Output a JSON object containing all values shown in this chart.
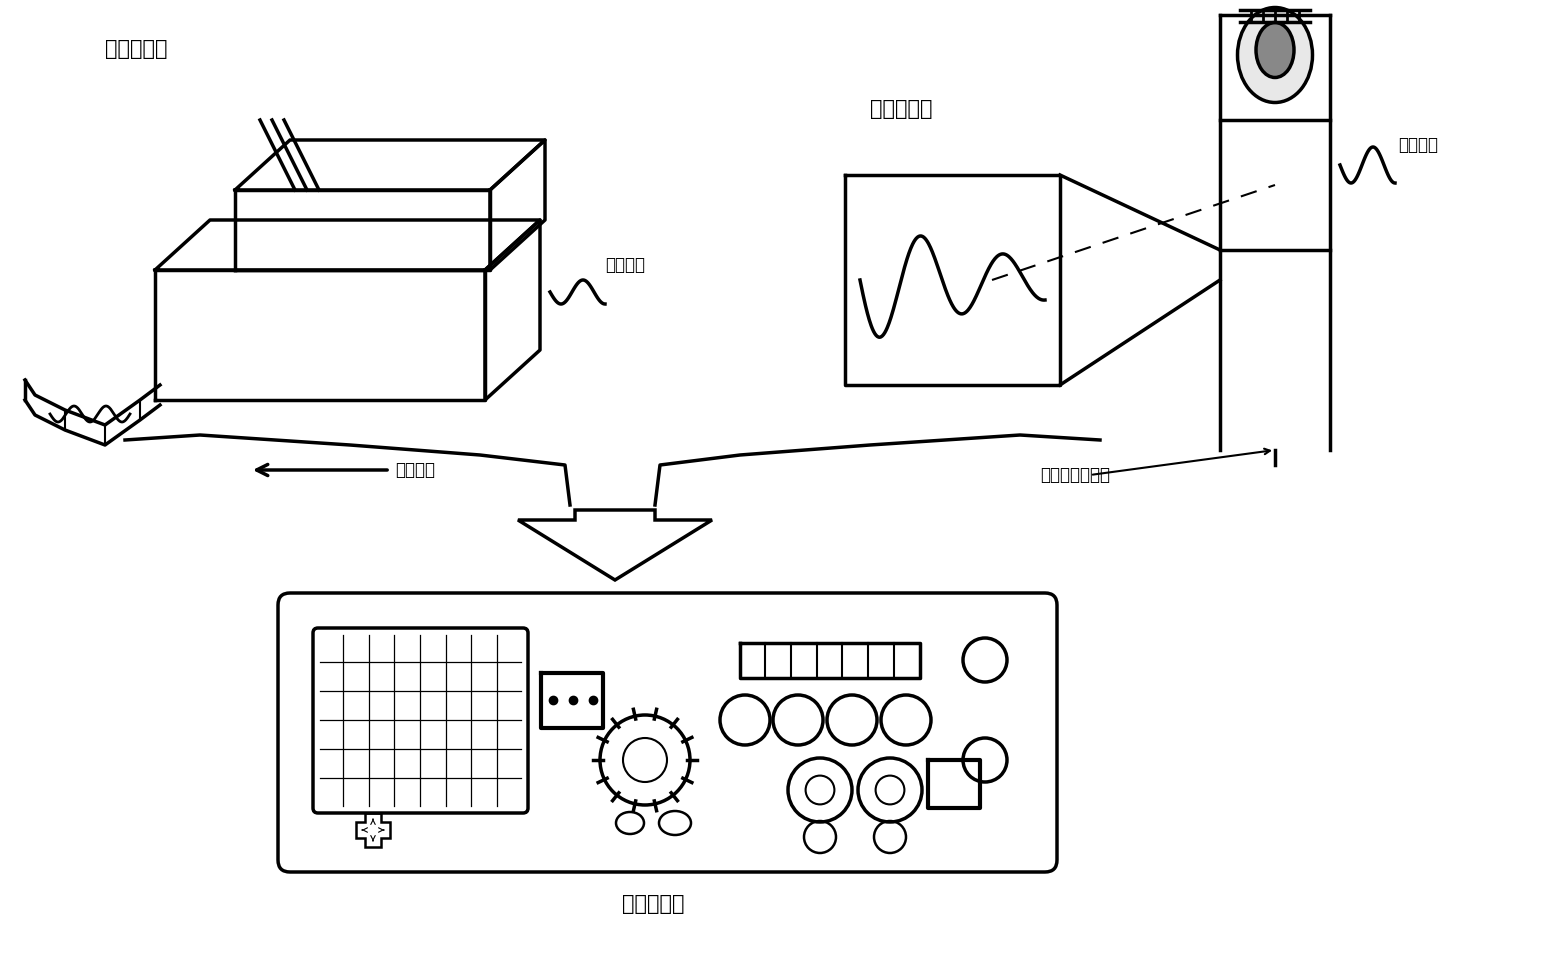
{
  "label_waveform_recorder": "波形记录器",
  "label_analog_osc": "模拟示波器",
  "label_digital_osc": "数字示波器",
  "label_input_signal_left": "输入信号",
  "label_input_signal_right": "输入信号",
  "label_paper_direction": "输纸方向",
  "label_time_scan": "时间轴扫描信号",
  "bg_color": "#ffffff",
  "line_color": "#000000",
  "font_size_label": 15,
  "font_size_small": 12
}
